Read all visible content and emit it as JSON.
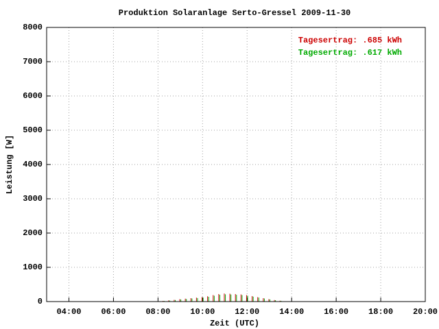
{
  "chart_data": {
    "type": "impulse",
    "title": "Produktion Solaranlage Serto-Gressel 2009-11-30",
    "x_label": "Zeit (UTC)",
    "y_label": "Leistung [W]",
    "annotations": [
      {
        "text": "Tagesertrag: .685 kWh",
        "color": "#cc0000"
      },
      {
        "text": "Tagesertrag: .617 kWh",
        "color": "#00aa00"
      }
    ],
    "x": [
      8,
      8.25,
      8.5,
      8.75,
      9,
      9.25,
      9.5,
      9.75,
      10,
      10.25,
      10.5,
      10.75,
      11,
      11.25,
      11.5,
      11.75,
      12,
      12.25,
      12.5,
      12.75,
      13,
      13.25,
      13.5,
      13.75,
      14
    ],
    "series": [
      {
        "color": "#cc0000",
        "values": [
          10,
          20,
          35,
          50,
          70,
          85,
          100,
          115,
          130,
          155,
          190,
          220,
          235,
          230,
          220,
          210,
          190,
          160,
          130,
          100,
          70,
          45,
          25,
          10,
          5
        ]
      },
      {
        "color": "#00aa00",
        "values": [
          8,
          18,
          30,
          45,
          62,
          76,
          90,
          103,
          117,
          140,
          170,
          198,
          212,
          207,
          198,
          189,
          171,
          144,
          117,
          90,
          63,
          40,
          22,
          9,
          4
        ]
      }
    ],
    "xlim": [
      3,
      20
    ],
    "xticks": [
      {
        "value": 4,
        "label": "04:00"
      },
      {
        "value": 6,
        "label": "06:00"
      },
      {
        "value": 8,
        "label": "08:00"
      },
      {
        "value": 10,
        "label": "10:00"
      },
      {
        "value": 12,
        "label": "12:00"
      },
      {
        "value": 14,
        "label": "14:00"
      },
      {
        "value": 16,
        "label": "16:00"
      },
      {
        "value": 18,
        "label": "18:00"
      },
      {
        "value": 20,
        "label": "20:00"
      }
    ],
    "ylim": [
      0,
      8000
    ],
    "yticks": [
      0,
      1000,
      2000,
      3000,
      4000,
      5000,
      6000,
      7000,
      8000
    ],
    "grid": true
  }
}
